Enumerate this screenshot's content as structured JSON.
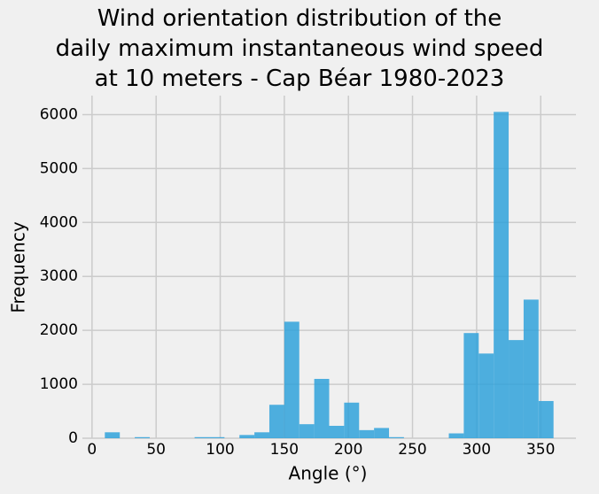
{
  "chart_data": {
    "type": "histogram",
    "title": "Wind orientation distribution of the\ndaily maximum instantaneous wind speed\nat 10 meters - Cap Béar 1980-2023",
    "x_label": "Angle (°)",
    "y_label": "Frequency",
    "bins": [
      10,
      21.67,
      33.33,
      45,
      56.67,
      68.33,
      80,
      91.67,
      103.33,
      115,
      126.67,
      138.33,
      150,
      161.67,
      173.33,
      185,
      196.67,
      208.33,
      220,
      231.67,
      243.33,
      255,
      266.67,
      278.33,
      290,
      301.67,
      313.33,
      325,
      336.67,
      348.33,
      360
    ],
    "values": [
      110,
      0,
      20,
      0,
      0,
      0,
      20,
      20,
      0,
      60,
      110,
      620,
      2160,
      260,
      1100,
      230,
      660,
      150,
      190,
      20,
      0,
      0,
      0,
      90,
      1950,
      1570,
      6050,
      1820,
      2570,
      690
    ],
    "color": "#30a2da",
    "xlim": [
      -7.5,
      377.5
    ],
    "xticks": [
      0,
      50,
      100,
      150,
      200,
      250,
      300,
      350
    ],
    "ylim": [
      0,
      6352
    ],
    "yticks": [
      0,
      1000,
      2000,
      3000,
      4000,
      5000,
      6000
    ],
    "grid": true
  }
}
